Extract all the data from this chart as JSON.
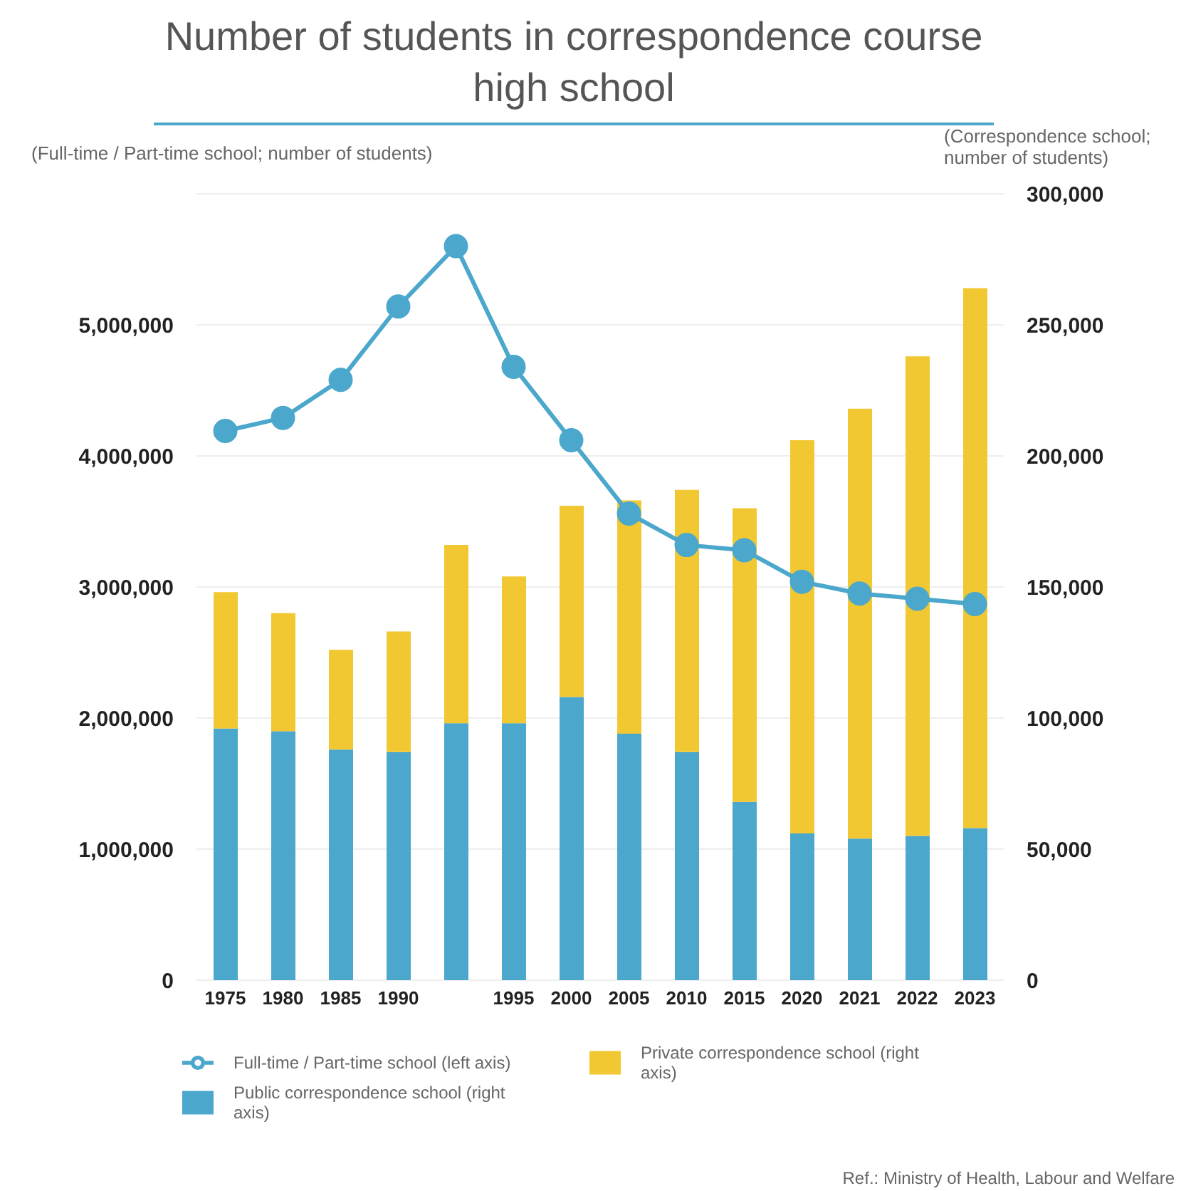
{
  "chart_data": {
    "type": "bar",
    "title": "Number of students in correspondence course high school",
    "ylabel": "(Full-time / Part-time school; number of students)",
    "y2label": "(Correspondence school; number of students)",
    "categories": [
      "1975",
      "1980",
      "1985",
      "1990",
      null,
      "1995",
      "2000",
      "2005",
      "2010",
      "2015",
      "2020",
      "2021",
      "2022",
      "2023"
    ],
    "series": [
      {
        "name": "Public correspondence school (right axis)",
        "axis": "y2",
        "color": "#4ba7cc",
        "values": [
          96000,
          95000,
          88000,
          87000,
          98000,
          98000,
          108000,
          94000,
          87000,
          68000,
          56000,
          54000,
          55000,
          58000
        ]
      },
      {
        "name": "Private correspondence school (right axis)",
        "axis": "y2",
        "color": "#f2c832",
        "values": [
          52000,
          45000,
          38000,
          46000,
          68000,
          56000,
          73000,
          89000,
          100000,
          112000,
          150000,
          164000,
          183000,
          206000
        ]
      },
      {
        "name": "Full-time / Part-time school (left axis)",
        "type": "line",
        "axis": "y",
        "color": "#4ba7cc",
        "values": [
          4190000,
          4290000,
          4580000,
          5140000,
          5600000,
          4680000,
          4120000,
          3560000,
          3320000,
          3280000,
          3040000,
          2950000,
          2910000,
          2870000
        ]
      }
    ],
    "stacked": true,
    "ylim": [
      0,
      6000000
    ],
    "yticks": [
      0,
      {
        "value": 1000000,
        "label": "1,000,000"
      },
      {
        "value": 2000000,
        "label": "2,000,000"
      },
      {
        "value": 3000000,
        "label": "3,000,000"
      },
      {
        "value": 4000000,
        "label": "4,000,000"
      },
      {
        "value": 5000000,
        "label": "5,000,000"
      }
    ],
    "y2lim": [
      0,
      300000
    ],
    "y2ticks": [
      0,
      {
        "value": 50000,
        "label": "50,000"
      },
      {
        "value": 100000,
        "label": "100,000"
      },
      {
        "value": 150000,
        "label": "150,000"
      },
      {
        "value": 200000,
        "label": "200,000"
      },
      {
        "value": 250000,
        "label": "250,000"
      },
      {
        "value": 300000,
        "label": "300,000"
      }
    ],
    "grid": "y",
    "legend": "bottom",
    "marker": "circle",
    "line_style": "solid",
    "annotations": [
      "Ref.: Ministry of Health, Labour and Welfare"
    ]
  }
}
